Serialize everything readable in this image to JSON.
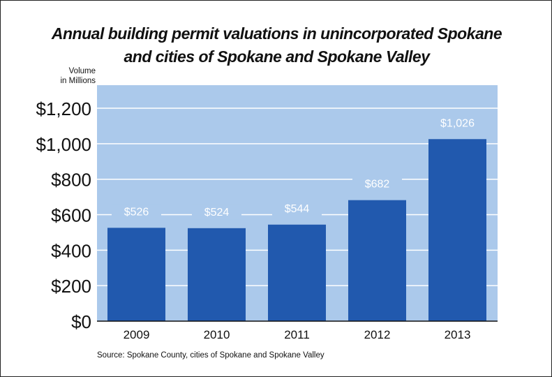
{
  "chart_data": {
    "type": "bar",
    "title": [
      "Annual building permit valuations in unincorporated Spokane",
      "and cities of Spokane and Spokane Valley"
    ],
    "ylabel": [
      "Volume",
      "in Millions"
    ],
    "xlabel": "",
    "categories": [
      "2009",
      "2010",
      "2011",
      "2012",
      "2013"
    ],
    "values": [
      526,
      524,
      544,
      682,
      1026
    ],
    "data_labels": [
      "$526",
      "$524",
      "$544",
      "$682",
      "$1,026"
    ],
    "yticks": [
      0,
      200,
      400,
      600,
      800,
      1000,
      1200
    ],
    "ytick_labels": [
      "$0",
      "$200",
      "$400",
      "$600",
      "$800",
      "$1,000",
      "$1,200"
    ],
    "ylim": [
      0,
      1330
    ],
    "grid": true,
    "source": "Source: Spokane County, cities of Spokane and Spokane Valley",
    "colors": {
      "bar": "#2159ae",
      "plot_bg": "#abc9eb",
      "grid": "#ffffff",
      "label": "#ffffff"
    }
  }
}
